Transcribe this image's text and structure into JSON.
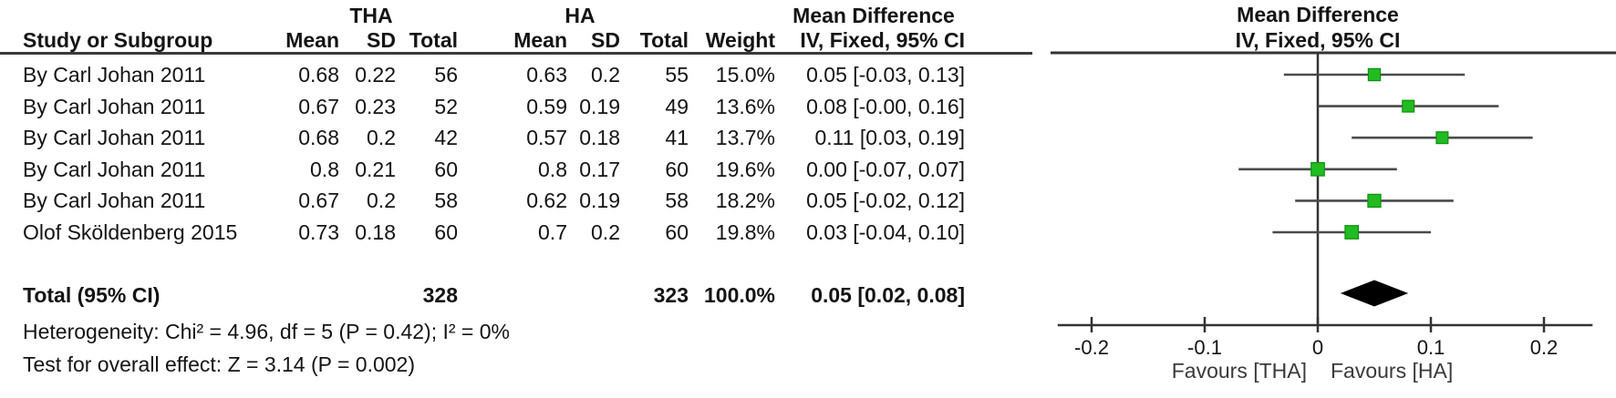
{
  "table": {
    "group1_label": "THA",
    "group2_label": "HA",
    "md_header_line1": "Mean Difference",
    "columns": {
      "study": "Study or Subgroup",
      "mean1": "Mean",
      "sd1": "SD",
      "total1": "Total",
      "mean2": "Mean",
      "sd2": "SD",
      "total2": "Total",
      "weight": "Weight",
      "ci": "IV, Fixed, 95% CI"
    },
    "rows": [
      {
        "study": "By Carl Johan 2011",
        "tha_mean": "0.68",
        "tha_sd": "0.22",
        "tha_total": "56",
        "ha_mean": "0.63",
        "ha_sd": "0.2",
        "ha_total": "55",
        "weight": "15.0%",
        "ci": "0.05 [-0.03, 0.13]"
      },
      {
        "study": "By Carl Johan 2011",
        "tha_mean": "0.67",
        "tha_sd": "0.23",
        "tha_total": "52",
        "ha_mean": "0.59",
        "ha_sd": "0.19",
        "ha_total": "49",
        "weight": "13.6%",
        "ci": "0.08 [-0.00, 0.16]"
      },
      {
        "study": "By Carl Johan 2011",
        "tha_mean": "0.68",
        "tha_sd": "0.2",
        "tha_total": "42",
        "ha_mean": "0.57",
        "ha_sd": "0.18",
        "ha_total": "41",
        "weight": "13.7%",
        "ci": "0.11 [0.03, 0.19]"
      },
      {
        "study": "By Carl Johan 2011",
        "tha_mean": "0.8",
        "tha_sd": "0.21",
        "tha_total": "60",
        "ha_mean": "0.8",
        "ha_sd": "0.17",
        "ha_total": "60",
        "weight": "19.6%",
        "ci": "0.00 [-0.07, 0.07]"
      },
      {
        "study": "By Carl Johan 2011",
        "tha_mean": "0.67",
        "tha_sd": "0.2",
        "tha_total": "58",
        "ha_mean": "0.62",
        "ha_sd": "0.19",
        "ha_total": "58",
        "weight": "18.2%",
        "ci": "0.05 [-0.02, 0.12]"
      },
      {
        "study": "Olof Sköldenberg 2015",
        "tha_mean": "0.73",
        "tha_sd": "0.18",
        "tha_total": "60",
        "ha_mean": "0.7",
        "ha_sd": "0.2",
        "ha_total": "60",
        "weight": "19.8%",
        "ci": "0.03 [-0.04, 0.10]"
      }
    ],
    "total": {
      "label": "Total (95% CI)",
      "tha_total": "328",
      "ha_total": "323",
      "weight": "100.0%",
      "ci": "0.05 [0.02, 0.08]"
    },
    "heterogeneity": "Heterogeneity: Chi² = 4.96, df = 5 (P = 0.42); I² = 0%",
    "overall_effect": "Test for overall effect: Z = 3.14 (P = 0.002)"
  },
  "plot": {
    "header_line1": "Mean Difference",
    "header_line2": "IV, Fixed, 95% CI"
  },
  "chart_data": {
    "type": "forest",
    "effect_measure": "Mean Difference",
    "model": "IV, Fixed, 95% CI",
    "studies": [
      {
        "name": "By Carl Johan 2011",
        "md": 0.05,
        "ci_low": -0.03,
        "ci_high": 0.13,
        "weight": 15.0
      },
      {
        "name": "By Carl Johan 2011",
        "md": 0.08,
        "ci_low": -0.0,
        "ci_high": 0.16,
        "weight": 13.6
      },
      {
        "name": "By Carl Johan 2011",
        "md": 0.11,
        "ci_low": 0.03,
        "ci_high": 0.19,
        "weight": 13.7
      },
      {
        "name": "By Carl Johan 2011",
        "md": 0.0,
        "ci_low": -0.07,
        "ci_high": 0.07,
        "weight": 19.6
      },
      {
        "name": "By Carl Johan 2011",
        "md": 0.05,
        "ci_low": -0.02,
        "ci_high": 0.12,
        "weight": 18.2
      },
      {
        "name": "Olof Sköldenberg 2015",
        "md": 0.03,
        "ci_low": -0.04,
        "ci_high": 0.1,
        "weight": 19.8
      }
    ],
    "total": {
      "md": 0.05,
      "ci_low": 0.02,
      "ci_high": 0.08,
      "weight": 100.0
    },
    "axis": {
      "xmin": -0.23,
      "xmax": 0.243,
      "ticks": [
        -0.2,
        -0.1,
        0,
        0.1,
        0.2
      ],
      "tick_labels": [
        "-0.2",
        "-0.1",
        "0",
        "0.1",
        "0.2"
      ]
    },
    "favours_left": "Favours [THA]",
    "favours_right": "Favours [HA]",
    "colors": {
      "marker": "#22bb22",
      "marker_edge": "#0f8f0f",
      "diamond": "#000000",
      "ci_line": "#4a4a4a",
      "axis": "#333333",
      "text": "#141414"
    }
  }
}
